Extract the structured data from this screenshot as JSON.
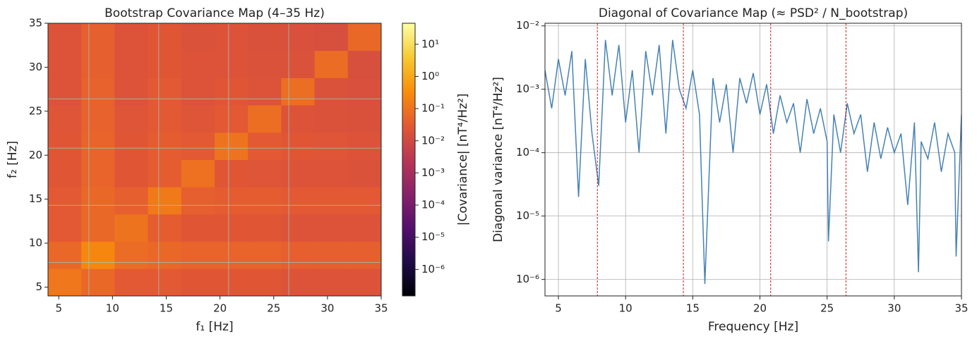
{
  "chart_data": [
    {
      "type": "heatmap",
      "title": "Bootstrap Covariance Map (4–35 Hz)",
      "xlabel": "f₁ [Hz]",
      "ylabel": "f₂ [Hz]",
      "xbins": [
        4,
        7.1,
        10.2,
        13.3,
        16.4,
        19.5,
        22.6,
        25.7,
        28.8,
        31.9,
        35
      ],
      "ybins": [
        4,
        7.1,
        10.2,
        13.3,
        16.4,
        19.5,
        22.6,
        25.7,
        28.8,
        31.9,
        35
      ],
      "values": [
        [
          0.12,
          0.06,
          0.03,
          0.03,
          0.025,
          0.025,
          0.025,
          0.02,
          0.02,
          0.02
        ],
        [
          0.06,
          0.25,
          0.07,
          0.06,
          0.05,
          0.05,
          0.05,
          0.04,
          0.04,
          0.04
        ],
        [
          0.03,
          0.06,
          0.1,
          0.035,
          0.025,
          0.025,
          0.025,
          0.02,
          0.02,
          0.02
        ],
        [
          0.03,
          0.06,
          0.04,
          0.13,
          0.04,
          0.035,
          0.035,
          0.03,
          0.03,
          0.03
        ],
        [
          0.025,
          0.05,
          0.025,
          0.035,
          0.09,
          0.025,
          0.022,
          0.02,
          0.02,
          0.018
        ],
        [
          0.025,
          0.05,
          0.025,
          0.035,
          0.03,
          0.1,
          0.03,
          0.025,
          0.022,
          0.02
        ],
        [
          0.022,
          0.045,
          0.022,
          0.03,
          0.022,
          0.03,
          0.08,
          0.02,
          0.018,
          0.017
        ],
        [
          0.02,
          0.045,
          0.02,
          0.03,
          0.02,
          0.025,
          0.02,
          0.08,
          0.018,
          0.016
        ],
        [
          0.02,
          0.04,
          0.02,
          0.025,
          0.02,
          0.02,
          0.018,
          0.018,
          0.07,
          0.015
        ],
        [
          0.02,
          0.04,
          0.02,
          0.025,
          0.018,
          0.02,
          0.017,
          0.016,
          0.015,
          0.06
        ]
      ],
      "colormap": "inferno",
      "xlim": [
        4,
        35
      ],
      "ylim": [
        4,
        35
      ],
      "xticks": [
        5,
        10,
        15,
        20,
        25,
        30,
        35
      ],
      "yticks": [
        5,
        10,
        15,
        20,
        25,
        30,
        35
      ],
      "lines": [
        7.8,
        14.3,
        20.8,
        26.4
      ],
      "lines_color": "#8fd3c8",
      "colorbar_label": "|Covariance| [nT⁴/Hz²]",
      "clim": [
        1.5e-07,
        45
      ],
      "cticks": [
        {
          "value": 1e-06,
          "label": "10⁻⁶"
        },
        {
          "value": 1e-05,
          "label": "10⁻⁵"
        },
        {
          "value": 0.0001,
          "label": "10⁻⁴"
        },
        {
          "value": 0.001,
          "label": "10⁻³"
        },
        {
          "value": 0.01,
          "label": "10⁻²"
        },
        {
          "value": 0.1,
          "label": "10⁻¹"
        },
        {
          "value": 1,
          "label": "10⁰"
        },
        {
          "value": 10,
          "label": "10¹"
        }
      ]
    },
    {
      "type": "line",
      "title": "Diagonal of Covariance Map (≈ PSD² / N_bootstrap)",
      "xlabel": "Frequency [Hz]",
      "ylabel": "Diagonal variance [nT⁴/Hz²]",
      "x": [
        4,
        4.5,
        5,
        5.5,
        6,
        6.5,
        7,
        7.5,
        8,
        8.5,
        9,
        9.5,
        10,
        10.5,
        11,
        11.5,
        12,
        12.5,
        13,
        13.5,
        14,
        14.5,
        15,
        15.5,
        15.9,
        16.5,
        17,
        17.5,
        18,
        18.5,
        19,
        19.5,
        20,
        20.5,
        21,
        21.5,
        22,
        22.5,
        23,
        23.5,
        24,
        24.5,
        25,
        25.1,
        25.5,
        26,
        26.5,
        27,
        27.5,
        28,
        28.5,
        29,
        29.5,
        30,
        30.5,
        31,
        31.5,
        31.8,
        32,
        32.5,
        33,
        33.5,
        34,
        34.5,
        34.6,
        35
      ],
      "values": [
        0.002,
        0.0005,
        0.003,
        0.0008,
        0.004,
        2e-05,
        0.003,
        0.0002,
        3e-05,
        0.006,
        0.0008,
        0.005,
        0.0003,
        0.002,
        0.0001,
        0.004,
        0.0008,
        0.005,
        0.0002,
        0.006,
        0.001,
        0.0005,
        0.002,
        0.0004,
        8.5e-07,
        0.0015,
        0.0003,
        0.0012,
        0.0001,
        0.0015,
        0.0006,
        0.0018,
        0.0004,
        0.0012,
        0.0002,
        0.0008,
        0.0003,
        0.0006,
        0.0001,
        0.0007,
        0.0002,
        0.0005,
        0.00015,
        4e-06,
        0.0004,
        0.0001,
        0.0006,
        0.0002,
        0.0004,
        5e-05,
        0.0003,
        8e-05,
        0.00025,
        0.0001,
        0.0002,
        1.5e-05,
        0.0003,
        1.3e-06,
        0.00015,
        8e-05,
        0.0003,
        5e-05,
        0.0002,
        0.0001,
        2.3e-06,
        0.0004
      ],
      "color": "#4682b4",
      "xlim": [
        4,
        35
      ],
      "ylim": [
        5.5e-07,
        0.011
      ],
      "log_y": true,
      "grid": true,
      "xticks": [
        5,
        10,
        15,
        20,
        25,
        30,
        35
      ],
      "yticks": [
        {
          "value": 1e-06,
          "label": "10⁻⁶"
        },
        {
          "value": 1e-05,
          "label": "10⁻⁵"
        },
        {
          "value": 0.0001,
          "label": "10⁻⁴"
        },
        {
          "value": 0.001,
          "label": "10⁻³"
        },
        {
          "value": 0.01,
          "label": "10⁻²"
        }
      ],
      "lines": [
        7.9,
        14.3,
        20.8,
        26.4
      ],
      "lines_color": "#cc0000"
    }
  ]
}
